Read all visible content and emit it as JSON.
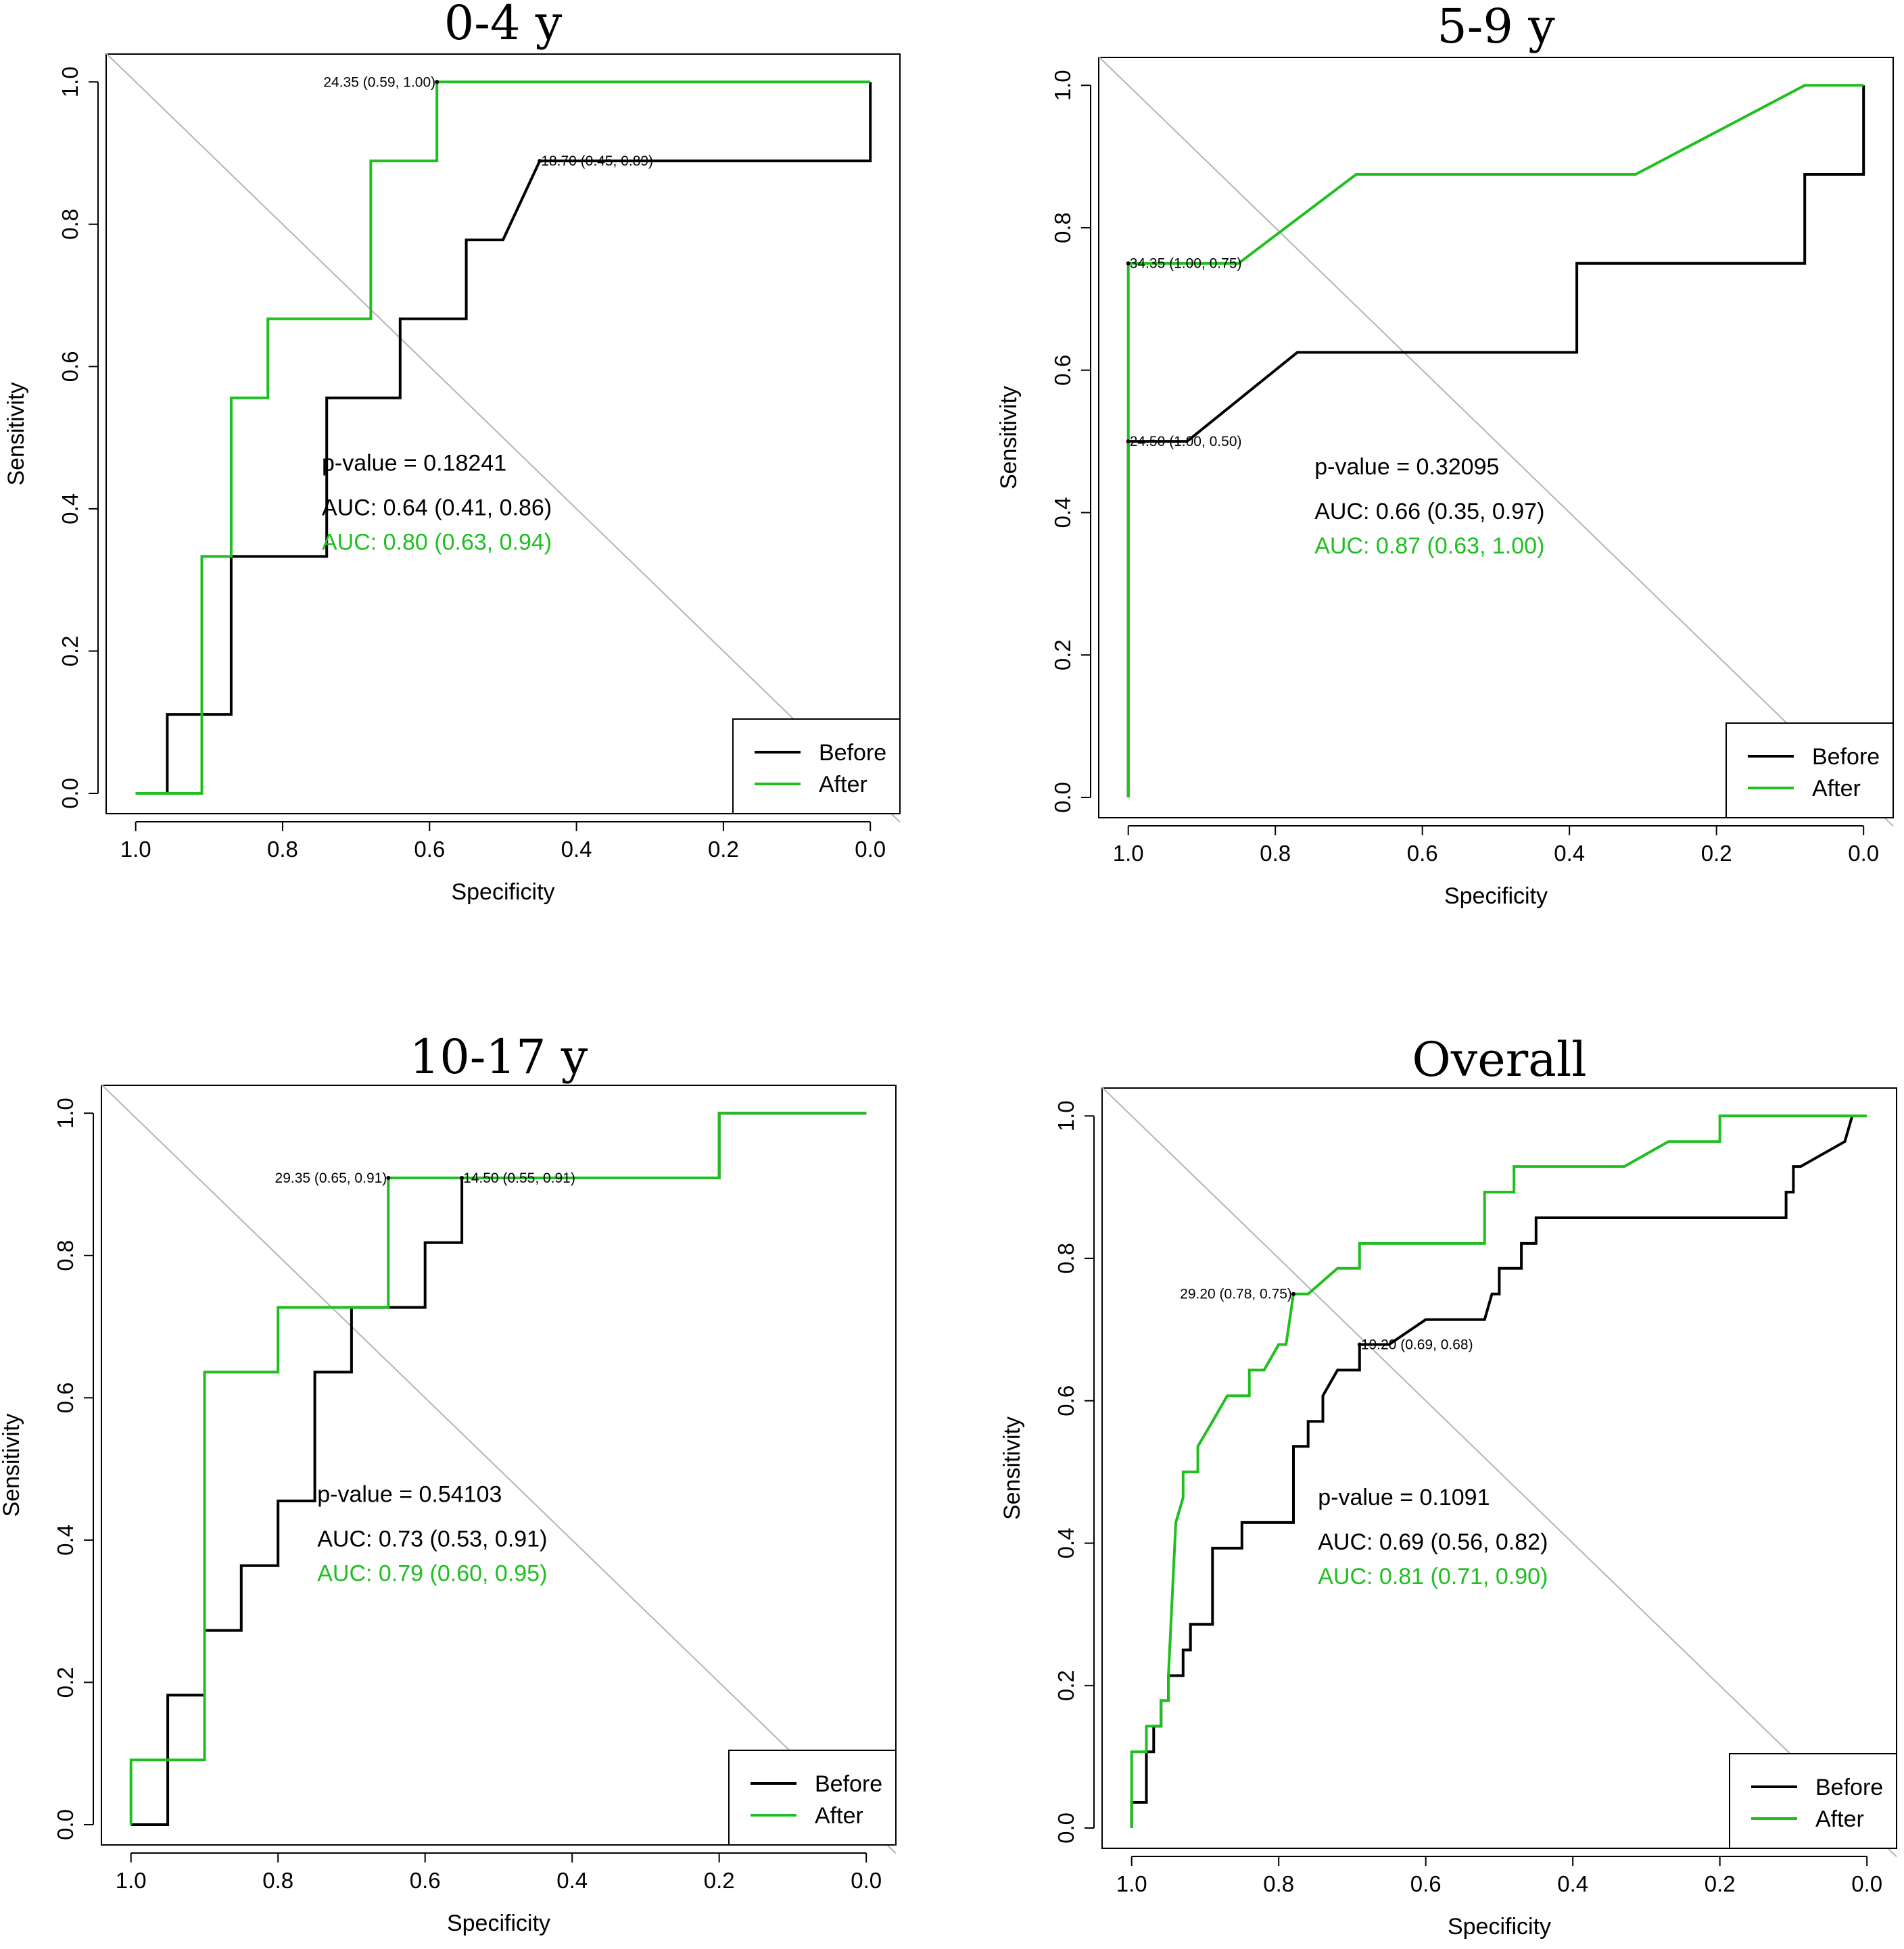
{
  "colors": {
    "before": "#000000",
    "after": "#1fbf1f",
    "diagonal": "#b4b4b4",
    "axis": "#000000"
  },
  "chart_data": [
    {
      "type": "line",
      "title": "0-4 y",
      "xlabel": "Specificity",
      "ylabel": "Sensitivity",
      "xlim": [
        1.0,
        0.0
      ],
      "ylim": [
        0.0,
        1.0
      ],
      "x_ticks": [
        "1.0",
        "0.8",
        "0.6",
        "0.4",
        "0.2",
        "0.0"
      ],
      "y_ticks": [
        "0.0",
        "0.2",
        "0.4",
        "0.6",
        "0.8",
        "1.0"
      ],
      "p_value_text": "p-value = 0.18241",
      "auc_before_text": "AUC: 0.64 (0.41, 0.86)",
      "auc_after_text": "AUC: 0.80 (0.63, 0.94)",
      "legend": [
        "Before",
        "After"
      ],
      "legend_position": "bottom-right",
      "series": [
        {
          "name": "Before",
          "x": [
            1.0,
            0.957,
            0.957,
            0.87,
            0.87,
            0.74,
            0.74,
            0.64,
            0.64,
            0.55,
            0.55,
            0.5,
            0.45,
            0.0,
            0.0
          ],
          "y": [
            0.0,
            0.0,
            0.111,
            0.111,
            0.333,
            0.333,
            0.556,
            0.556,
            0.667,
            0.667,
            0.778,
            0.778,
            0.889,
            0.889,
            1.0
          ]
        },
        {
          "name": "After",
          "x": [
            1.0,
            0.91,
            0.91,
            0.87,
            0.87,
            0.82,
            0.82,
            0.68,
            0.68,
            0.59,
            0.59,
            0.0
          ],
          "y": [
            0.0,
            0.0,
            0.333,
            0.333,
            0.556,
            0.556,
            0.667,
            0.667,
            0.889,
            0.889,
            1.0,
            1.0
          ]
        }
      ],
      "annotations": [
        {
          "text": "24.35 (0.59, 1.00)",
          "x": 0.59,
          "y": 1.0,
          "align": "end"
        },
        {
          "text": "18.70 (0.45, 0.89)",
          "x": 0.45,
          "y": 0.889,
          "align": "start"
        }
      ]
    },
    {
      "type": "line",
      "title": "5-9 y",
      "xlabel": "Specificity",
      "ylabel": "Sensitivity",
      "xlim": [
        1.0,
        0.0
      ],
      "ylim": [
        0.0,
        1.0
      ],
      "x_ticks": [
        "1.0",
        "0.8",
        "0.6",
        "0.4",
        "0.2",
        "0.0"
      ],
      "y_ticks": [
        "0.0",
        "0.2",
        "0.4",
        "0.6",
        "0.8",
        "1.0"
      ],
      "p_value_text": "p-value = 0.32095",
      "auc_before_text": "AUC: 0.66 (0.35, 0.97)",
      "auc_after_text": "AUC: 0.87 (0.63, 1.00)",
      "legend": [
        "Before",
        "After"
      ],
      "legend_position": "bottom-right",
      "series": [
        {
          "name": "Before",
          "x": [
            1.0,
            1.0,
            0.92,
            0.77,
            0.39,
            0.39,
            0.08,
            0.08,
            0.0,
            0.0
          ],
          "y": [
            0.0,
            0.5,
            0.5,
            0.625,
            0.625,
            0.75,
            0.75,
            0.875,
            0.875,
            1.0
          ]
        },
        {
          "name": "After",
          "x": [
            1.0,
            1.0,
            0.85,
            0.69,
            0.31,
            0.08,
            0.0
          ],
          "y": [
            0.0,
            0.75,
            0.75,
            0.875,
            0.875,
            1.0,
            1.0
          ]
        }
      ],
      "annotations": [
        {
          "text": "34.35 (1.00, 0.75)",
          "x": 1.0,
          "y": 0.75,
          "align": "start"
        },
        {
          "text": "24.50 (1.00, 0.50)",
          "x": 1.0,
          "y": 0.5,
          "align": "start"
        }
      ]
    },
    {
      "type": "line",
      "title": "10-17 y",
      "xlabel": "Specificity",
      "ylabel": "Sensitivity",
      "xlim": [
        1.0,
        0.0
      ],
      "ylim": [
        0.0,
        1.0
      ],
      "x_ticks": [
        "1.0",
        "0.8",
        "0.6",
        "0.4",
        "0.2",
        "0.0"
      ],
      "y_ticks": [
        "0.0",
        "0.2",
        "0.4",
        "0.6",
        "0.8",
        "1.0"
      ],
      "p_value_text": "p-value = 0.54103",
      "auc_before_text": "AUC: 0.73 (0.53, 0.91)",
      "auc_after_text": "AUC: 0.79 (0.60, 0.95)",
      "legend": [
        "Before",
        "After"
      ],
      "legend_position": "bottom-right",
      "series": [
        {
          "name": "Before",
          "x": [
            1.0,
            0.95,
            0.95,
            0.9,
            0.9,
            0.85,
            0.85,
            0.8,
            0.8,
            0.75,
            0.75,
            0.7,
            0.7,
            0.6,
            0.6,
            0.55,
            0.55,
            0.2,
            0.2,
            0.0
          ],
          "y": [
            0.0,
            0.0,
            0.182,
            0.182,
            0.273,
            0.273,
            0.364,
            0.364,
            0.455,
            0.455,
            0.636,
            0.636,
            0.727,
            0.727,
            0.818,
            0.818,
            0.909,
            0.909,
            1.0,
            1.0
          ]
        },
        {
          "name": "After",
          "x": [
            1.0,
            1.0,
            0.9,
            0.9,
            0.8,
            0.8,
            0.65,
            0.65,
            0.2,
            0.2,
            0.0
          ],
          "y": [
            0.0,
            0.091,
            0.091,
            0.636,
            0.636,
            0.727,
            0.727,
            0.909,
            0.909,
            1.0,
            1.0
          ]
        }
      ],
      "annotations": [
        {
          "text": "29.35 (0.65, 0.91)",
          "x": 0.65,
          "y": 0.909,
          "align": "end"
        },
        {
          "text": "14.50 (0.55, 0.91)",
          "x": 0.55,
          "y": 0.909,
          "align": "start"
        }
      ]
    },
    {
      "type": "line",
      "title": "Overall",
      "xlabel": "Specificity",
      "ylabel": "Sensitivity",
      "xlim": [
        1.0,
        0.0
      ],
      "ylim": [
        0.0,
        1.0
      ],
      "x_ticks": [
        "1.0",
        "0.8",
        "0.6",
        "0.4",
        "0.2",
        "0.0"
      ],
      "y_ticks": [
        "0.0",
        "0.2",
        "0.4",
        "0.6",
        "0.8",
        "1.0"
      ],
      "p_value_text": "p-value = 0.1091",
      "auc_before_text": "AUC: 0.69 (0.56, 0.82)",
      "auc_after_text": "AUC: 0.81 (0.71, 0.90)",
      "legend": [
        "Before",
        "After"
      ],
      "legend_position": "bottom-right",
      "series": [
        {
          "name": "Before",
          "x": [
            1.0,
            1.0,
            0.98,
            0.98,
            0.97,
            0.97,
            0.96,
            0.96,
            0.95,
            0.95,
            0.93,
            0.93,
            0.92,
            0.92,
            0.89,
            0.89,
            0.85,
            0.85,
            0.78,
            0.78,
            0.76,
            0.76,
            0.74,
            0.74,
            0.72,
            0.7,
            0.69,
            0.69,
            0.65,
            0.6,
            0.52,
            0.51,
            0.5,
            0.5,
            0.47,
            0.47,
            0.45,
            0.45,
            0.44,
            0.44,
            0.33,
            0.11,
            0.11,
            0.1,
            0.1,
            0.09,
            0.09,
            0.03,
            0.02
          ],
          "y": [
            0.0,
            0.036,
            0.036,
            0.107,
            0.107,
            0.143,
            0.143,
            0.179,
            0.179,
            0.214,
            0.214,
            0.25,
            0.25,
            0.286,
            0.286,
            0.393,
            0.393,
            0.429,
            0.429,
            0.536,
            0.536,
            0.571,
            0.571,
            0.607,
            0.643,
            0.643,
            0.643,
            0.679,
            0.679,
            0.714,
            0.714,
            0.75,
            0.75,
            0.786,
            0.786,
            0.821,
            0.821,
            0.857,
            0.857,
            0.857,
            0.857,
            0.857,
            0.893,
            0.893,
            0.929,
            0.929,
            0.929,
            0.964,
            1.0
          ]
        },
        {
          "name": "After",
          "x": [
            1.0,
            1.0,
            0.98,
            0.98,
            0.96,
            0.96,
            0.95,
            0.95,
            0.94,
            0.93,
            0.93,
            0.91,
            0.91,
            0.89,
            0.87,
            0.87,
            0.84,
            0.84,
            0.82,
            0.82,
            0.8,
            0.8,
            0.79,
            0.78,
            0.78,
            0.76,
            0.72,
            0.69,
            0.69,
            0.55,
            0.52,
            0.52,
            0.48,
            0.48,
            0.33,
            0.27,
            0.2,
            0.2,
            0.0
          ],
          "y": [
            0.0,
            0.107,
            0.107,
            0.143,
            0.143,
            0.179,
            0.179,
            0.214,
            0.429,
            0.464,
            0.5,
            0.5,
            0.536,
            0.571,
            0.607,
            0.607,
            0.607,
            0.643,
            0.643,
            0.643,
            0.679,
            0.679,
            0.679,
            0.75,
            0.75,
            0.75,
            0.786,
            0.786,
            0.821,
            0.821,
            0.821,
            0.893,
            0.893,
            0.929,
            0.929,
            0.964,
            0.964,
            1.0,
            1.0
          ]
        }
      ],
      "annotations": [
        {
          "text": "29.20 (0.78, 0.75)",
          "x": 0.78,
          "y": 0.75,
          "align": "end"
        },
        {
          "text": "19.20 (0.69, 0.68)",
          "x": 0.69,
          "y": 0.679,
          "align": "start"
        }
      ]
    }
  ]
}
